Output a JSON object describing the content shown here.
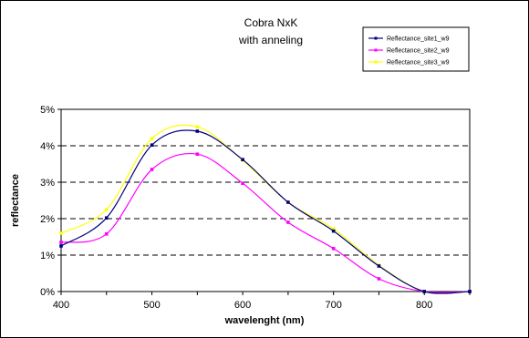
{
  "chart_data": {
    "type": "line",
    "title": "Cobra NxK",
    "subtitle": "with anneling",
    "xlabel": "wavelenght (nm)",
    "ylabel": "reflectance",
    "x": [
      400,
      450,
      500,
      550,
      600,
      650,
      700,
      750,
      800,
      850
    ],
    "xlim": [
      400,
      850
    ],
    "ylim": [
      0,
      0.05
    ],
    "x_ticks": [
      "400",
      "500",
      "600",
      "700",
      "800"
    ],
    "y_ticks": [
      "0%",
      "1%",
      "2%",
      "3%",
      "4%",
      "5%"
    ],
    "grid": "horizontal dashed",
    "legend_position": "top-right",
    "series": [
      {
        "name": "Reflectance_site1_w9",
        "color": "#000080",
        "values": [
          0.0125,
          0.0202,
          0.0402,
          0.044,
          0.0362,
          0.0245,
          0.0166,
          0.007,
          0.0,
          0.0
        ]
      },
      {
        "name": "Reflectance_site2_w9",
        "color": "#FF00FF",
        "values": [
          0.0135,
          0.0158,
          0.0335,
          0.0377,
          0.0297,
          0.019,
          0.0118,
          0.0035,
          0.0,
          0.0
        ]
      },
      {
        "name": "Reflectance_site3_w9",
        "color": "#FFFF00",
        "values": [
          0.016,
          0.0225,
          0.042,
          0.0452,
          0.036,
          0.0245,
          0.0172,
          0.0072,
          0.0,
          0.0
        ]
      }
    ]
  }
}
